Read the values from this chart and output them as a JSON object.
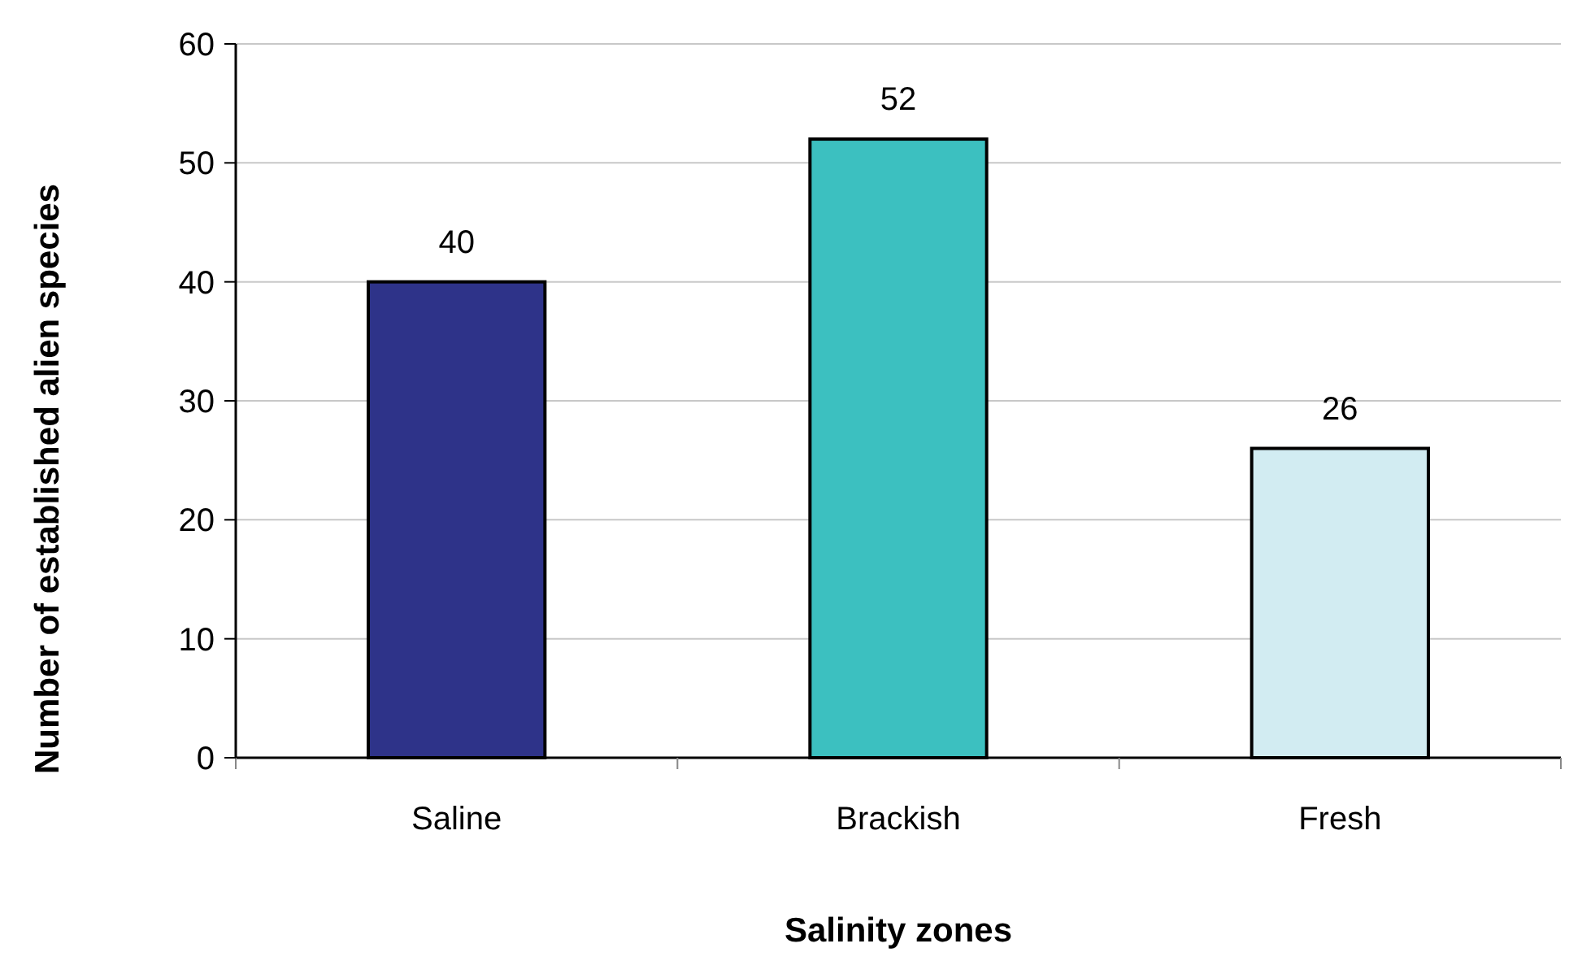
{
  "chart_data": {
    "type": "bar",
    "xlabel": "Salinity zones",
    "ylabel": "Number of established alien species",
    "categories": [
      "Saline",
      "Brackish",
      "Fresh"
    ],
    "values": [
      40,
      52,
      26
    ],
    "colors": [
      "#2e3389",
      "#3cc0c0",
      "#d2ecf2"
    ],
    "ylim": [
      0,
      60
    ],
    "yticks": [
      0,
      10,
      20,
      30,
      40,
      50,
      60
    ],
    "grid": "y",
    "data_labels": true
  }
}
